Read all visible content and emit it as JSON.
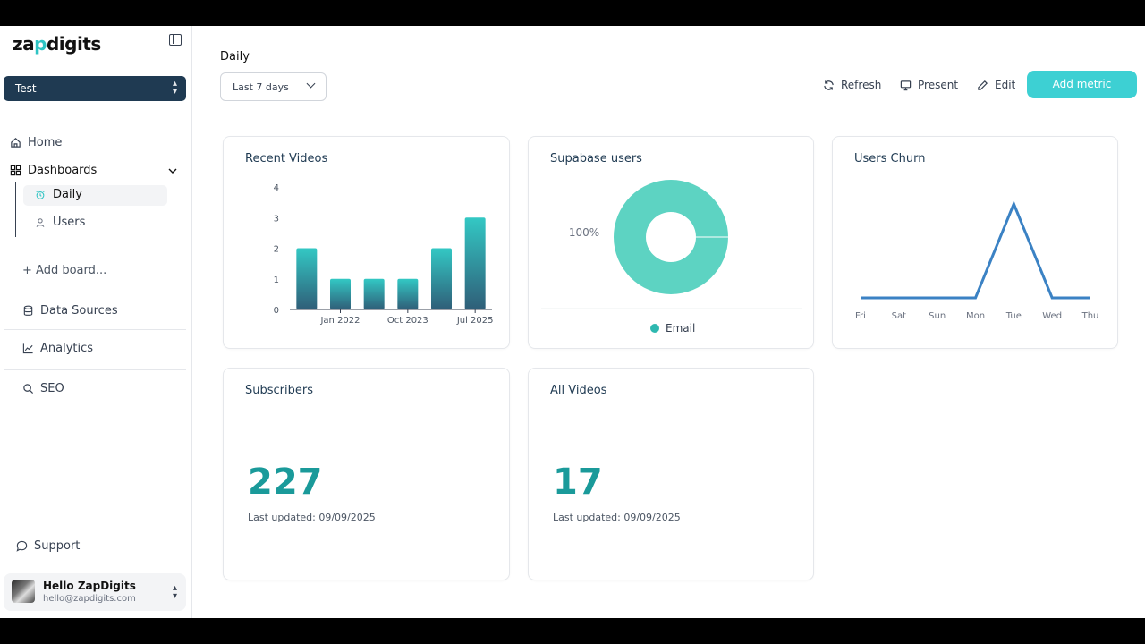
{
  "app": {
    "logo_text_a": "za",
    "logo_text_p": "p",
    "logo_text_b": "digits"
  },
  "sidebar": {
    "team": "Test",
    "home": "Home",
    "dashboards": "Dashboards",
    "daily": "Daily",
    "users": "Users",
    "add_board": "+ Add board...",
    "data_sources": "Data Sources",
    "analytics": "Analytics",
    "seo": "SEO",
    "support": "Support",
    "user_name": "Hello ZapDigits",
    "user_email": "hello@zapdigits.com"
  },
  "header": {
    "title": "Daily",
    "range": "Last 7 days",
    "refresh": "Refresh",
    "present": "Present",
    "edit": "Edit",
    "add_metric": "Add metric"
  },
  "colors": {
    "accent": "#3dd0d3",
    "team_bg": "#1f3a52",
    "number": "#1a9a9a",
    "pie": "#5dd3c2",
    "line": "#3b82c4"
  },
  "cards": {
    "recent_videos": {
      "title": "Recent Videos"
    },
    "supabase_users": {
      "title": "Supabase users"
    },
    "users_churn": {
      "title": "Users Churn"
    },
    "subscribers": {
      "title": "Subscribers",
      "value": "227",
      "updated": "Last updated: 09/09/2025"
    },
    "all_videos": {
      "title": "All Videos",
      "value": "17",
      "updated": "Last updated: 09/09/2025"
    }
  },
  "chart_data": [
    {
      "type": "bar",
      "title": "Recent Videos",
      "values": [
        2,
        1,
        1,
        1,
        2,
        3
      ],
      "x_tick_labels": [
        "Jan 2022",
        "Oct 2023",
        "Jul 2025"
      ],
      "x_tick_positions": [
        1,
        3,
        5
      ],
      "y_ticks": [
        0,
        1,
        2,
        3,
        4
      ],
      "ylim": [
        0,
        4
      ],
      "color": "gradient teal"
    },
    {
      "type": "pie",
      "title": "Supabase users",
      "donut": true,
      "slices": [
        {
          "label": "Email",
          "value": 100,
          "display": "100%"
        }
      ],
      "legend": "bottom"
    },
    {
      "type": "line",
      "title": "Users Churn",
      "categories": [
        "Fri",
        "Sat",
        "Sun",
        "Mon",
        "Tue",
        "Wed",
        "Thu"
      ],
      "values": [
        0,
        0,
        0,
        0,
        1,
        0,
        0
      ],
      "ylim": [
        0,
        1.2
      ]
    }
  ]
}
